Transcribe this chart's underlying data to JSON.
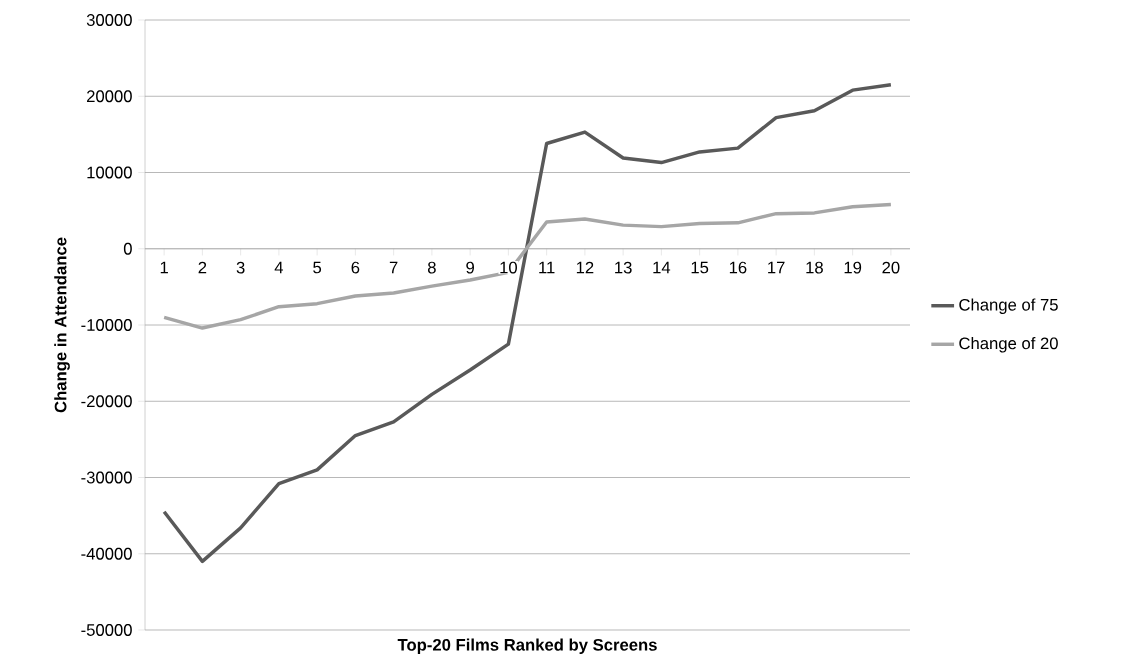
{
  "chart_data": {
    "type": "line",
    "xlabel": "Top-20 Films Ranked by Screens",
    "ylabel": "Change in Attendance",
    "categories": [
      "1",
      "2",
      "3",
      "4",
      "5",
      "6",
      "7",
      "8",
      "9",
      "10",
      "11",
      "12",
      "13",
      "14",
      "15",
      "16",
      "17",
      "18",
      "19",
      "20"
    ],
    "series": [
      {
        "name": "Change of 75",
        "color": "#595959",
        "values": [
          -34500,
          -41000,
          -36600,
          -30800,
          -29000,
          -24500,
          -22700,
          -19100,
          -15900,
          -12500,
          13800,
          15300,
          11900,
          11300,
          12700,
          13200,
          17200,
          18100,
          20800,
          21500
        ]
      },
      {
        "name": "Change of 20",
        "color": "#a6a6a6",
        "values": [
          -9000,
          -10400,
          -9300,
          -7600,
          -7200,
          -6200,
          -5800,
          -4900,
          -4100,
          -3100,
          3500,
          3900,
          3100,
          2900,
          3300,
          3400,
          4600,
          4700,
          5500,
          5800
        ]
      }
    ],
    "ylim": [
      -50000,
      30000
    ],
    "yticks": [
      -50000,
      -40000,
      -30000,
      -20000,
      -10000,
      0,
      10000,
      20000,
      30000
    ],
    "grid": "y",
    "legend": "right",
    "marker": "none",
    "line_style": "solid"
  }
}
